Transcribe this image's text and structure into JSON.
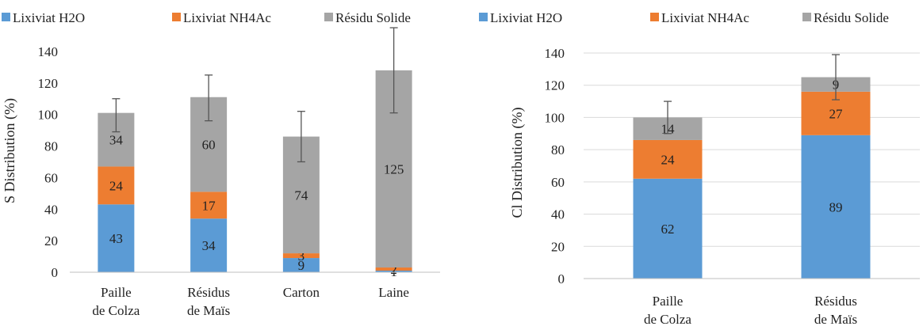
{
  "chart_data": [
    {
      "type": "bar",
      "stacked": true,
      "ylabel": "S Distribution (%)",
      "ylim": [
        0,
        150
      ],
      "yticks": [
        0,
        20,
        40,
        60,
        80,
        100,
        120,
        140
      ],
      "grid": false,
      "legend_position": "top",
      "categories": [
        [
          "Paille",
          "de Colza"
        ],
        [
          "Résidus",
          "de Maïs"
        ],
        [
          "Carton"
        ],
        [
          "Laine"
        ]
      ],
      "series": [
        {
          "name": "Lixiviat H2O",
          "color": "#5b9bd5",
          "values": [
            43,
            34,
            9,
            1
          ],
          "labels": [
            "43",
            "34",
            "9",
            "1"
          ]
        },
        {
          "name": "Lixiviat NH4Ac",
          "color": "#ed7d31",
          "values": [
            24,
            17,
            3,
            2
          ],
          "labels": [
            "24",
            "17",
            "3",
            "2"
          ]
        },
        {
          "name": "Résidu Solide",
          "color": "#a5a5a5",
          "values": [
            34,
            60,
            74,
            125
          ],
          "labels": [
            "34",
            "60",
            "74",
            "125"
          ]
        }
      ],
      "error_bars": [
        {
          "center": 100,
          "low": 89,
          "high": 110
        },
        {
          "center": 110,
          "low": 96,
          "high": 125
        },
        {
          "center": 86,
          "low": 70,
          "high": 102
        },
        {
          "center": 128,
          "low": 101,
          "high": 155
        }
      ]
    },
    {
      "type": "bar",
      "stacked": true,
      "ylabel": "Cl Distribution (%)",
      "ylim": [
        0,
        140
      ],
      "yticks": [
        0,
        20,
        40,
        60,
        80,
        100,
        120,
        140
      ],
      "grid": true,
      "legend_position": "top",
      "categories": [
        [
          "Paille",
          "de Colza"
        ],
        [
          "Résidus",
          "de Maïs"
        ]
      ],
      "series": [
        {
          "name": "Lixiviat H2O",
          "color": "#5b9bd5",
          "values": [
            62,
            89
          ],
          "labels": [
            "62",
            "89"
          ]
        },
        {
          "name": "Lixiviat NH4Ac",
          "color": "#ed7d31",
          "values": [
            24,
            27
          ],
          "labels": [
            "24",
            "27"
          ]
        },
        {
          "name": "Résidu Solide",
          "color": "#a5a5a5",
          "values": [
            14,
            9
          ],
          "labels": [
            "14",
            "9"
          ]
        }
      ],
      "error_bars": [
        {
          "center": 100,
          "low": 90,
          "high": 110
        },
        {
          "center": 125,
          "low": 111,
          "high": 139
        }
      ]
    }
  ]
}
